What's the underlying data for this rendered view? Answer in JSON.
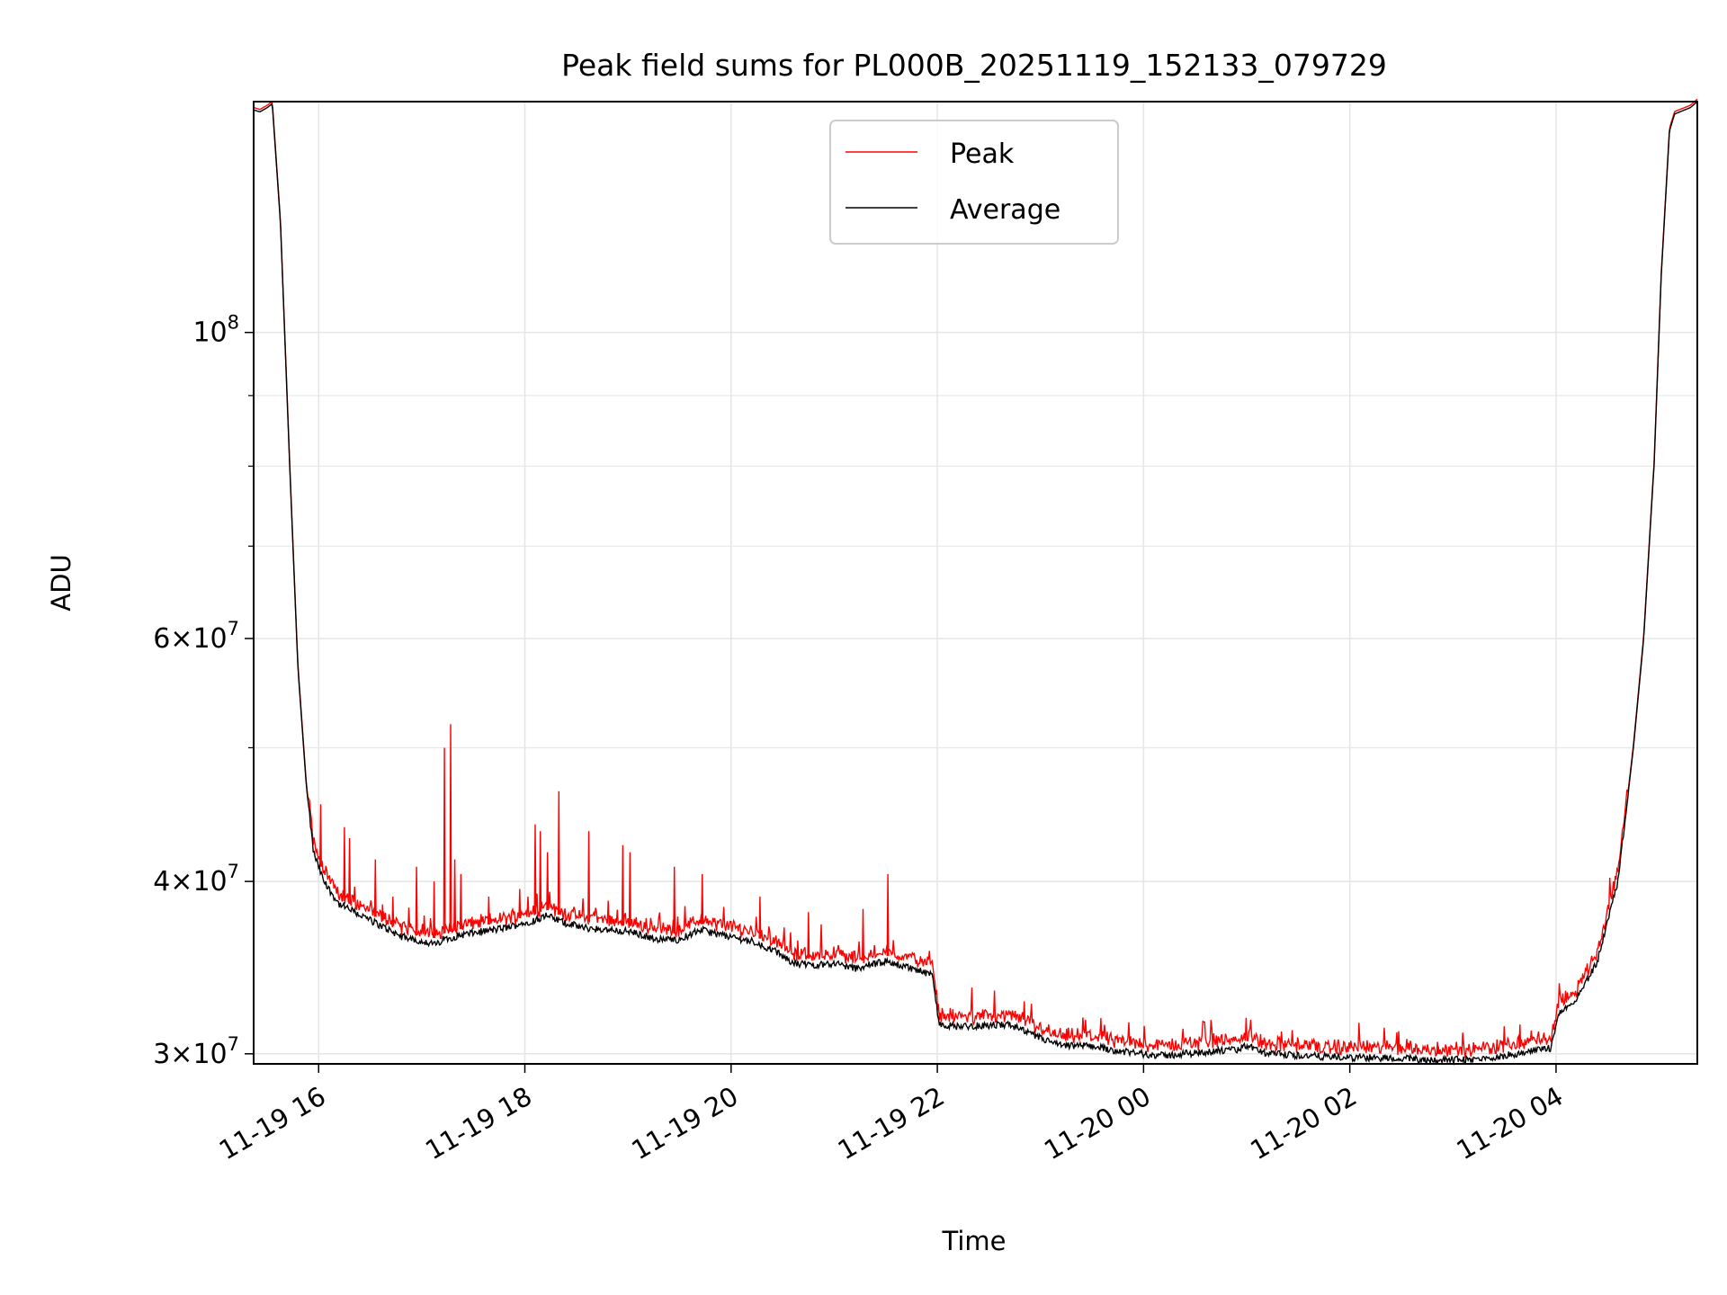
{
  "chart_data": {
    "type": "line",
    "title": "Peak field sums for PL000B_20251119_152133_079729",
    "xlabel": "Time",
    "ylabel": "ADU",
    "yscale": "log",
    "ylim": [
      29500000,
      147000000
    ],
    "xlim": [
      "2025-11-19 15:22",
      "2025-11-20 05:22"
    ],
    "x_ticks": [
      "11-19 16",
      "11-19 18",
      "11-19 20",
      "11-19 22",
      "11-20 00",
      "11-20 02",
      "11-20 04"
    ],
    "y_major_ticks": [
      {
        "value": 100000000,
        "base": "10",
        "exp": "8",
        "mult": ""
      },
      {
        "value": 60000000,
        "base": "10",
        "exp": "7",
        "mult": "6×"
      },
      {
        "value": 40000000,
        "base": "10",
        "exp": "7",
        "mult": "4×"
      },
      {
        "value": 30000000,
        "base": "10",
        "exp": "7",
        "mult": "3×"
      }
    ],
    "y_minor_ticks": [
      50000000,
      70000000,
      80000000,
      90000000
    ],
    "grid": true,
    "legend_position": "top-center",
    "series": [
      {
        "name": "Peak",
        "color": "#ff0000",
        "spikes": [
          [
            16.02,
            45500000
          ],
          [
            16.25,
            43800000
          ],
          [
            16.3,
            43000000
          ],
          [
            16.55,
            41500000
          ],
          [
            16.62,
            38500000
          ],
          [
            16.72,
            39000000
          ],
          [
            16.95,
            41000000
          ],
          [
            17.12,
            40000000
          ],
          [
            17.22,
            50000000
          ],
          [
            17.28,
            52000000
          ],
          [
            17.32,
            41500000
          ],
          [
            17.38,
            40500000
          ],
          [
            17.65,
            39000000
          ],
          [
            17.95,
            39500000
          ],
          [
            18.1,
            44000000
          ],
          [
            18.15,
            43500000
          ],
          [
            18.22,
            42000000
          ],
          [
            18.33,
            46500000
          ],
          [
            18.62,
            43500000
          ],
          [
            18.95,
            42500000
          ],
          [
            19.02,
            42000000
          ],
          [
            19.45,
            41000000
          ],
          [
            19.72,
            40500000
          ],
          [
            20.28,
            39000000
          ],
          [
            20.75,
            38000000
          ],
          [
            21.28,
            38200000
          ],
          [
            21.52,
            40500000
          ],
          [
            26.85,
            30600000
          ],
          [
            27.65,
            31500000
          ]
        ]
      },
      {
        "name": "Average",
        "color": "#000000",
        "baseline": [
          [
            15.37,
            145000000
          ],
          [
            15.43,
            144500000
          ],
          [
            15.5,
            145500000
          ],
          [
            15.55,
            146500000
          ],
          [
            15.63,
            120000000
          ],
          [
            15.72,
            80000000
          ],
          [
            15.8,
            57000000
          ],
          [
            15.88,
            47000000
          ],
          [
            15.95,
            42000000
          ],
          [
            16.05,
            40000000
          ],
          [
            16.2,
            38500000
          ],
          [
            16.5,
            37500000
          ],
          [
            16.8,
            36500000
          ],
          [
            17.0,
            36200000
          ],
          [
            17.15,
            36000000
          ],
          [
            17.2,
            36300000
          ],
          [
            17.4,
            36600000
          ],
          [
            17.8,
            37000000
          ],
          [
            18.1,
            37500000
          ],
          [
            18.2,
            37800000
          ],
          [
            18.4,
            37300000
          ],
          [
            18.6,
            37000000
          ],
          [
            19.0,
            36800000
          ],
          [
            19.3,
            36300000
          ],
          [
            19.5,
            36300000
          ],
          [
            19.7,
            36900000
          ],
          [
            19.9,
            36600000
          ],
          [
            20.2,
            36200000
          ],
          [
            20.4,
            35700000
          ],
          [
            20.6,
            34900000
          ],
          [
            20.8,
            34800000
          ],
          [
            21.0,
            34900000
          ],
          [
            21.2,
            34600000
          ],
          [
            21.5,
            35000000
          ],
          [
            21.7,
            34700000
          ],
          [
            21.95,
            34200000
          ],
          [
            22.02,
            31500000
          ],
          [
            22.2,
            31400000
          ],
          [
            22.7,
            31500000
          ],
          [
            22.9,
            31000000
          ],
          [
            23.2,
            30400000
          ],
          [
            23.5,
            30400000
          ],
          [
            23.8,
            30100000
          ],
          [
            24.2,
            29900000
          ],
          [
            24.6,
            30100000
          ],
          [
            24.9,
            30200000
          ],
          [
            25.0,
            30400000
          ],
          [
            25.2,
            30000000
          ],
          [
            25.6,
            29900000
          ],
          [
            26.0,
            29800000
          ],
          [
            26.4,
            29800000
          ],
          [
            26.8,
            29700000
          ],
          [
            27.2,
            29700000
          ],
          [
            27.5,
            29900000
          ],
          [
            27.7,
            30100000
          ],
          [
            27.95,
            30300000
          ],
          [
            28.02,
            32000000
          ],
          [
            28.2,
            32900000
          ],
          [
            28.4,
            35000000
          ],
          [
            28.6,
            40000000
          ],
          [
            28.75,
            50000000
          ],
          [
            28.85,
            60000000
          ],
          [
            28.95,
            80000000
          ],
          [
            29.02,
            110000000
          ],
          [
            29.1,
            140000000
          ],
          [
            29.15,
            144000000
          ],
          [
            29.2,
            144500000
          ],
          [
            29.3,
            145500000
          ],
          [
            29.37,
            147000000
          ]
        ]
      }
    ]
  }
}
